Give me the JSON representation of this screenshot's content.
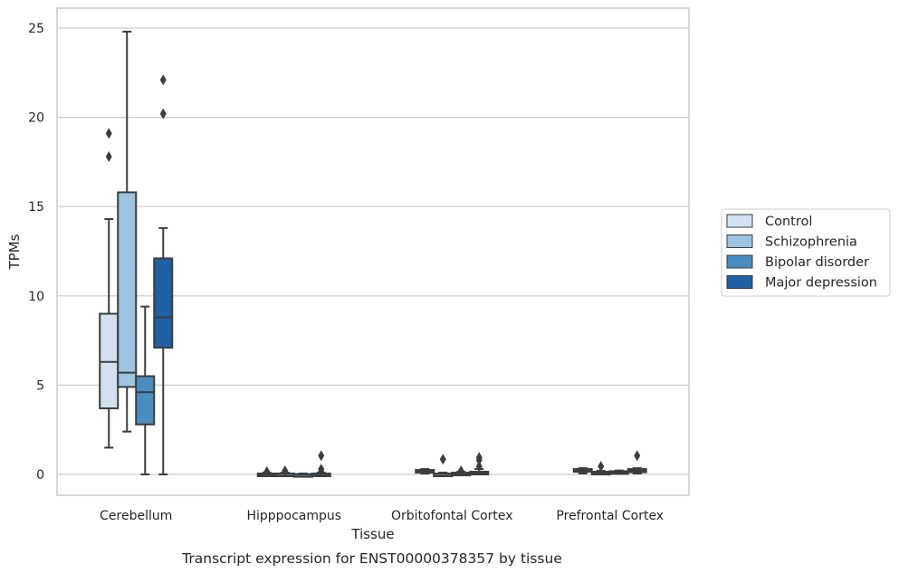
{
  "chart_data": {
    "type": "box",
    "title": "",
    "caption": "Transcript expression for ENST00000378357 by tissue",
    "xlabel": "Tissue",
    "ylabel": "TPMs",
    "ylim": [
      -1.2,
      26.1
    ],
    "yticks": [
      0,
      5,
      10,
      15,
      20,
      25
    ],
    "grid": "horizontal",
    "legend_position": "right",
    "categories": [
      "Cerebellum",
      "Hipppocampus",
      "Orbitofontal Cortex",
      "Prefrontal Cortex"
    ],
    "series": [
      {
        "name": "Control",
        "color": "#d1e1f0",
        "boxes": [
          {
            "whislo": 1.5,
            "q1": 3.7,
            "med": 6.3,
            "q3": 9.0,
            "whishi": 14.3,
            "fliers": [
              17.8,
              19.1
            ]
          },
          {
            "whislo": 0.0,
            "q1": 0.0,
            "med": 0.0,
            "q3": 0.05,
            "whishi": 0.1,
            "fliers": [
              0.15
            ]
          },
          {
            "whislo": 0.05,
            "q1": 0.1,
            "med": 0.15,
            "q3": 0.25,
            "whishi": 0.3,
            "fliers": []
          },
          {
            "whislo": 0.05,
            "q1": 0.15,
            "med": 0.2,
            "q3": 0.3,
            "whishi": 0.35,
            "fliers": []
          }
        ]
      },
      {
        "name": "Schizophrenia",
        "color": "#9cc4e0",
        "boxes": [
          {
            "whislo": 2.4,
            "q1": 4.9,
            "med": 5.7,
            "q3": 15.8,
            "whishi": 24.8,
            "fliers": []
          },
          {
            "whislo": 0.0,
            "q1": 0.0,
            "med": 0.02,
            "q3": 0.05,
            "whishi": 0.1,
            "fliers": [
              0.2
            ]
          },
          {
            "whislo": 0.0,
            "q1": 0.0,
            "med": 0.02,
            "q3": 0.05,
            "whishi": 0.1,
            "fliers": [
              0.85
            ]
          },
          {
            "whislo": 0.0,
            "q1": 0.05,
            "med": 0.1,
            "q3": 0.15,
            "whishi": 0.2,
            "fliers": [
              0.45
            ]
          }
        ]
      },
      {
        "name": "Bipolar disorder",
        "color": "#4a8dc1",
        "boxes": [
          {
            "whislo": 0.0,
            "q1": 2.8,
            "med": 4.6,
            "q3": 5.5,
            "whishi": 9.4,
            "fliers": []
          },
          {
            "whislo": 0.0,
            "q1": 0.0,
            "med": 0.0,
            "q3": 0.02,
            "whishi": 0.05,
            "fliers": []
          },
          {
            "whislo": 0.0,
            "q1": 0.02,
            "med": 0.05,
            "q3": 0.1,
            "whishi": 0.15,
            "fliers": [
              0.2
            ]
          },
          {
            "whislo": 0.05,
            "q1": 0.08,
            "med": 0.12,
            "q3": 0.18,
            "whishi": 0.22,
            "fliers": []
          }
        ]
      },
      {
        "name": "Major depression",
        "color": "#2060a4",
        "boxes": [
          {
            "whislo": 0.0,
            "q1": 7.1,
            "med": 8.8,
            "q3": 12.1,
            "whishi": 13.8,
            "fliers": [
              20.2,
              22.1
            ]
          },
          {
            "whislo": 0.0,
            "q1": 0.0,
            "med": 0.02,
            "q3": 0.05,
            "whishi": 0.1,
            "fliers": [
              0.15,
              0.3,
              1.05
            ]
          },
          {
            "whislo": 0.0,
            "q1": 0.02,
            "med": 0.05,
            "q3": 0.15,
            "whishi": 0.3,
            "fliers": [
              0.45,
              0.8,
              0.95
            ]
          },
          {
            "whislo": 0.05,
            "q1": 0.12,
            "med": 0.2,
            "q3": 0.3,
            "whishi": 0.35,
            "fliers": [
              1.05
            ]
          }
        ]
      }
    ]
  }
}
